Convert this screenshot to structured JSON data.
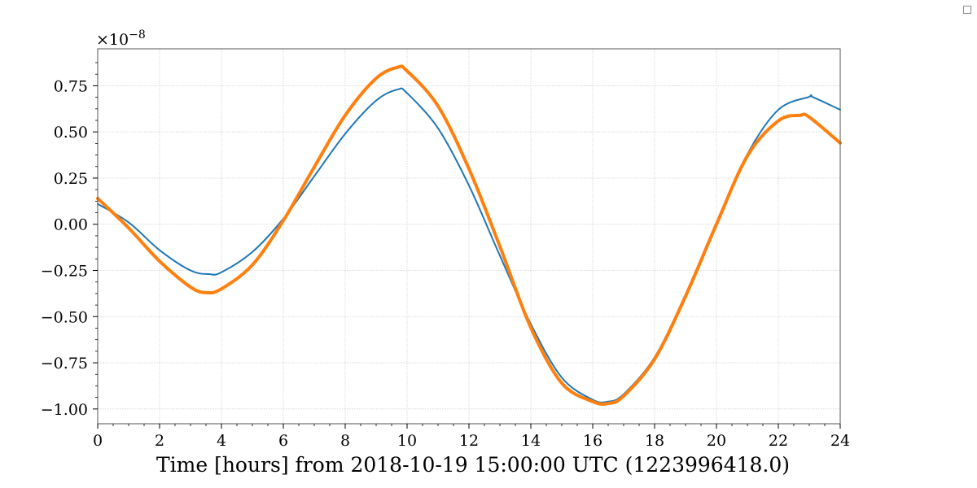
{
  "window": {
    "corner_icon": "square-icon"
  },
  "chart_data": {
    "type": "line",
    "title": "",
    "xlabel": "Time [hours] from 2018-10-19 15:00:00 UTC (1223996418.0)",
    "ylabel": "",
    "y_offset_label_base": "×10",
    "y_offset_label_exp": "−8",
    "xlim": [
      0,
      24
    ],
    "ylim": [
      -1.08,
      0.95
    ],
    "x_ticks": [
      0,
      2,
      4,
      6,
      8,
      10,
      12,
      14,
      16,
      18,
      20,
      22,
      24
    ],
    "x_tick_labels": [
      "0",
      "2",
      "4",
      "6",
      "8",
      "10",
      "12",
      "14",
      "16",
      "18",
      "20",
      "22",
      "24"
    ],
    "y_ticks": [
      -1.0,
      -0.75,
      -0.5,
      -0.25,
      0.0,
      0.25,
      0.5,
      0.75
    ],
    "y_tick_labels": [
      "−1.00",
      "−0.75",
      "−0.50",
      "−0.25",
      "0.00",
      "0.25",
      "0.50",
      "0.75"
    ],
    "grid": true,
    "legend": "none",
    "series": [
      {
        "color": "#1f77b4",
        "x": [
          0,
          1,
          2,
          3,
          3.6,
          4,
          5,
          6,
          7,
          8,
          9,
          9.7,
          10,
          11,
          12,
          13,
          14,
          15,
          16,
          16.5,
          17,
          18,
          19,
          20,
          21,
          22,
          23,
          23.1,
          24
        ],
        "values": [
          0.11,
          0.01,
          -0.14,
          -0.25,
          -0.27,
          -0.26,
          -0.15,
          0.03,
          0.26,
          0.49,
          0.67,
          0.73,
          0.71,
          0.52,
          0.21,
          -0.17,
          -0.54,
          -0.83,
          -0.95,
          -0.96,
          -0.92,
          -0.72,
          -0.38,
          0.01,
          0.38,
          0.62,
          0.69,
          0.69,
          0.62
        ]
      },
      {
        "color": "#ff7f0e",
        "x": [
          0,
          1,
          2,
          3,
          3.5,
          4,
          5,
          6,
          7,
          8,
          9,
          9.7,
          10,
          11,
          12,
          13,
          14,
          15,
          16,
          16.5,
          17,
          18,
          19,
          20,
          21,
          22,
          22.7,
          23,
          24
        ],
        "values": [
          0.14,
          -0.02,
          -0.2,
          -0.34,
          -0.37,
          -0.35,
          -0.22,
          0.02,
          0.31,
          0.59,
          0.79,
          0.85,
          0.83,
          0.64,
          0.3,
          -0.12,
          -0.56,
          -0.86,
          -0.96,
          -0.97,
          -0.93,
          -0.73,
          -0.39,
          0.0,
          0.37,
          0.56,
          0.59,
          0.58,
          0.44
        ]
      }
    ]
  }
}
